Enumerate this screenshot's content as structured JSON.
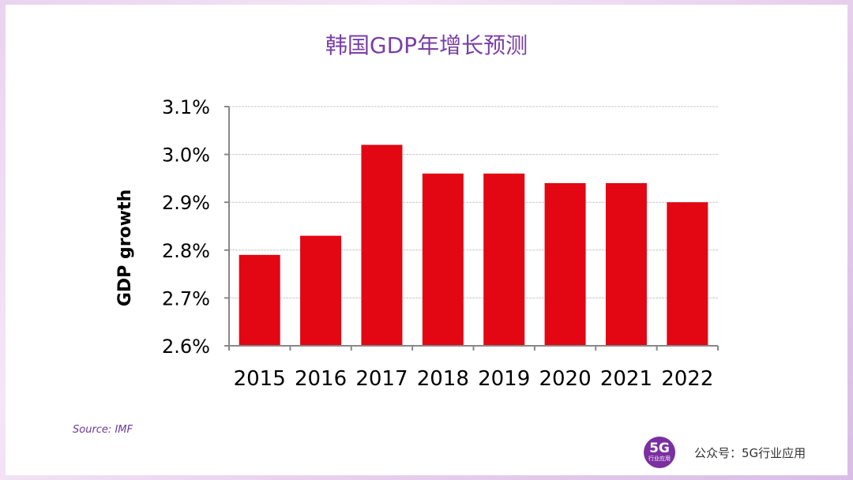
{
  "title": "韩国GDP年增长预测",
  "source": "Source: IMF",
  "brand": {
    "logo_big": "5G",
    "logo_small": "行业应用",
    "account": "公众号：5G行业应用"
  },
  "colors": {
    "bar": "#e30613",
    "title": "#7a3fa6"
  },
  "chart_data": {
    "type": "bar",
    "categories": [
      "2015",
      "2016",
      "2017",
      "2018",
      "2019",
      "2020",
      "2021",
      "2022"
    ],
    "values": [
      2.79,
      2.83,
      3.02,
      2.96,
      2.96,
      2.94,
      2.94,
      2.9
    ],
    "ylabel": "GDP growth",
    "ylim": [
      2.6,
      3.1
    ],
    "yticks": [
      2.6,
      2.7,
      2.8,
      2.9,
      3.0,
      3.1
    ],
    "ytick_labels": [
      "2.6%",
      "2.7%",
      "2.8%",
      "2.9%",
      "3.0%",
      "3.1%"
    ],
    "grid": true
  }
}
